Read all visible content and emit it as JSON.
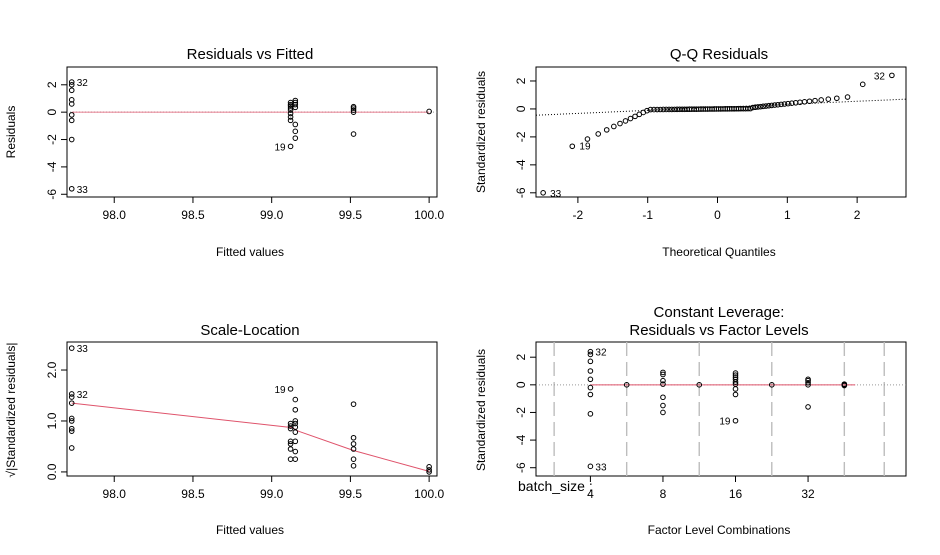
{
  "chart_data": [
    {
      "type": "scatter",
      "title": "Residuals vs Fitted",
      "xlabel": "Fitted values",
      "ylabel": "Residuals",
      "xlim": [
        97.7,
        100.05
      ],
      "ylim": [
        -6.2,
        3.3
      ],
      "xticks": [
        "98.0",
        "98.5",
        "99.0",
        "99.5",
        "100.0"
      ],
      "xtick_values": [
        98.0,
        98.5,
        99.0,
        99.5,
        100.0
      ],
      "yticks": [
        "-6",
        "-4",
        "-2",
        "0",
        "2"
      ],
      "ytick_values": [
        -6,
        -4,
        -2,
        0,
        2
      ],
      "reference_line": {
        "y": 0,
        "color": "#999999",
        "style": "dotted"
      },
      "smooth_line_color": "#DF536B",
      "points": [
        [
          97.73,
          2.2
        ],
        [
          97.73,
          2.0
        ],
        [
          97.73,
          1.6
        ],
        [
          97.73,
          0.9
        ],
        [
          97.73,
          0.6
        ],
        [
          97.73,
          -0.2
        ],
        [
          97.73,
          -0.6
        ],
        [
          97.73,
          -2.0
        ],
        [
          97.73,
          -5.6
        ],
        [
          99.12,
          0.7
        ],
        [
          99.12,
          0.55
        ],
        [
          99.12,
          0.45
        ],
        [
          99.12,
          0.3
        ],
        [
          99.12,
          0.15
        ],
        [
          99.12,
          -0.1
        ],
        [
          99.12,
          -0.35
        ],
        [
          99.12,
          -0.6
        ],
        [
          99.12,
          -2.5
        ],
        [
          99.15,
          0.85
        ],
        [
          99.15,
          0.7
        ],
        [
          99.15,
          0.55
        ],
        [
          99.15,
          0.35
        ],
        [
          99.15,
          -0.9
        ],
        [
          99.15,
          -1.4
        ],
        [
          99.15,
          -1.9
        ],
        [
          99.52,
          0.4
        ],
        [
          99.52,
          0.3
        ],
        [
          99.52,
          0.15
        ],
        [
          99.52,
          0.0
        ],
        [
          99.52,
          -1.6
        ],
        [
          100.0,
          0.05
        ]
      ],
      "labels": [
        {
          "text": "32",
          "x": 97.73,
          "y": 2.2,
          "side": "right"
        },
        {
          "text": "19",
          "x": 99.12,
          "y": -2.5,
          "side": "left"
        },
        {
          "text": "33",
          "x": 97.73,
          "y": -5.6,
          "side": "right"
        }
      ]
    },
    {
      "type": "scatter",
      "title": "Q-Q Residuals",
      "xlabel": "Theoretical Quantiles",
      "ylabel": "Standardized residuals",
      "xlim": [
        -2.6,
        2.7
      ],
      "ylim": [
        -6.3,
        3.0
      ],
      "xticks": [
        "-2",
        "-1",
        "0",
        "1",
        "2"
      ],
      "xtick_values": [
        -2,
        -1,
        0,
        1,
        2
      ],
      "yticks": [
        "-6",
        "-4",
        "-2",
        "0",
        "2"
      ],
      "ytick_values": [
        -6,
        -4,
        -2,
        0,
        2
      ],
      "reference_line": {
        "from": [
          -2.6,
          -0.45
        ],
        "to": [
          2.7,
          0.7
        ],
        "color": "#000000",
        "style": "dotted"
      },
      "labels": [
        {
          "text": "32",
          "x": 2.47,
          "y": 2.4,
          "side": "left"
        },
        {
          "text": "19",
          "x": -2.05,
          "y": -2.6,
          "side": "right"
        },
        {
          "text": "33",
          "x": -2.47,
          "y": -6.0,
          "side": "right"
        }
      ]
    },
    {
      "type": "line",
      "title": "Scale-Location",
      "xlabel": "Fitted values",
      "ylabel": "√|Standardized residuals|",
      "xlim": [
        97.7,
        100.05
      ],
      "ylim": [
        -0.08,
        2.55
      ],
      "xticks": [
        "98.0",
        "98.5",
        "99.0",
        "99.5",
        "100.0"
      ],
      "xtick_values": [
        98.0,
        98.5,
        99.0,
        99.5,
        100.0
      ],
      "yticks": [
        "0.0",
        "1.0",
        "2.0"
      ],
      "ytick_values": [
        0.0,
        1.0,
        2.0
      ],
      "series": [
        {
          "values": [
            [
              97.73,
              1.35
            ],
            [
              99.13,
              0.87
            ],
            [
              99.17,
              0.8
            ],
            [
              99.52,
              0.42
            ],
            [
              100.0,
              0.01
            ]
          ],
          "color": "#DF536B"
        }
      ],
      "points": [
        [
          97.73,
          2.43
        ],
        [
          97.73,
          1.53
        ],
        [
          97.73,
          1.47
        ],
        [
          97.73,
          1.35
        ],
        [
          97.73,
          1.05
        ],
        [
          97.73,
          1.0
        ],
        [
          97.73,
          0.85
        ],
        [
          97.73,
          0.8
        ],
        [
          97.73,
          0.47
        ],
        [
          99.12,
          1.63
        ],
        [
          99.12,
          0.95
        ],
        [
          99.12,
          0.9
        ],
        [
          99.12,
          0.85
        ],
        [
          99.12,
          0.6
        ],
        [
          99.12,
          0.55
        ],
        [
          99.12,
          0.45
        ],
        [
          99.12,
          0.25
        ],
        [
          99.15,
          1.42
        ],
        [
          99.15,
          1.22
        ],
        [
          99.15,
          1.0
        ],
        [
          99.15,
          0.95
        ],
        [
          99.15,
          0.88
        ],
        [
          99.15,
          0.78
        ],
        [
          99.15,
          0.6
        ],
        [
          99.15,
          0.4
        ],
        [
          99.15,
          0.25
        ],
        [
          99.52,
          1.33
        ],
        [
          99.52,
          0.67
        ],
        [
          99.52,
          0.55
        ],
        [
          99.52,
          0.45
        ],
        [
          99.52,
          0.25
        ],
        [
          99.52,
          0.12
        ],
        [
          100.0,
          0.1
        ],
        [
          100.0,
          0.04
        ],
        [
          100.0,
          0.0
        ]
      ],
      "labels": [
        {
          "text": "33",
          "x": 97.73,
          "y": 2.43,
          "side": "right"
        },
        {
          "text": "32",
          "x": 97.73,
          "y": 1.53,
          "side": "right"
        },
        {
          "text": "19",
          "x": 99.12,
          "y": 1.63,
          "side": "left"
        }
      ]
    },
    {
      "type": "scatter",
      "title": "Constant Leverage:",
      "subtitle": "Residuals vs Factor Levels",
      "xlabel": "Factor Level Combinations",
      "ylabel": "Standardized residuals",
      "factor_label": "batch_size :",
      "xlim": [
        0.5,
        10.7
      ],
      "ylim": [
        -6.6,
        3.1
      ],
      "xticks": [
        "4",
        "8",
        "16",
        "32"
      ],
      "xtick_values": [
        2,
        4,
        6,
        8
      ],
      "yticks": [
        "-6",
        "-4",
        "-2",
        "0",
        "2"
      ],
      "ytick_values": [
        -6,
        -4,
        -2,
        0,
        2
      ],
      "reference_line": {
        "y": 0,
        "color": "#DF536B",
        "style": "solid"
      },
      "separators": [
        1.0,
        3.0,
        5.0,
        7.0,
        9.0,
        10.1
      ],
      "points": [
        [
          2.0,
          2.4
        ],
        [
          2.0,
          2.2
        ],
        [
          2.0,
          1.7
        ],
        [
          2.0,
          1.0
        ],
        [
          2.0,
          0.4
        ],
        [
          2.0,
          -0.2
        ],
        [
          2.0,
          -0.7
        ],
        [
          2.0,
          -2.1
        ],
        [
          2.0,
          -5.9
        ],
        [
          3.0,
          0.0
        ],
        [
          4.0,
          0.9
        ],
        [
          4.0,
          0.75
        ],
        [
          4.0,
          0.3
        ],
        [
          4.0,
          0.05
        ],
        [
          4.0,
          -0.9
        ],
        [
          4.0,
          -1.5
        ],
        [
          4.0,
          -2.0
        ],
        [
          5.0,
          0.0
        ],
        [
          6.0,
          0.85
        ],
        [
          6.0,
          0.7
        ],
        [
          6.0,
          0.55
        ],
        [
          6.0,
          0.4
        ],
        [
          6.0,
          0.2
        ],
        [
          6.0,
          0.05
        ],
        [
          6.0,
          -0.3
        ],
        [
          6.0,
          -0.7
        ],
        [
          6.0,
          -2.6
        ],
        [
          7.0,
          0.0
        ],
        [
          8.0,
          0.4
        ],
        [
          8.0,
          0.3
        ],
        [
          8.0,
          0.15
        ],
        [
          8.0,
          0.0
        ],
        [
          8.0,
          -1.6
        ],
        [
          9.0,
          0.05
        ],
        [
          9.0,
          0.0
        ],
        [
          9.0,
          -0.05
        ]
      ],
      "labels": [
        {
          "text": "32",
          "x": 2.0,
          "y": 2.4,
          "side": "right"
        },
        {
          "text": "19",
          "x": 6.0,
          "y": -2.6,
          "side": "left"
        },
        {
          "text": "33",
          "x": 2.0,
          "y": -5.9,
          "side": "right"
        }
      ]
    }
  ]
}
